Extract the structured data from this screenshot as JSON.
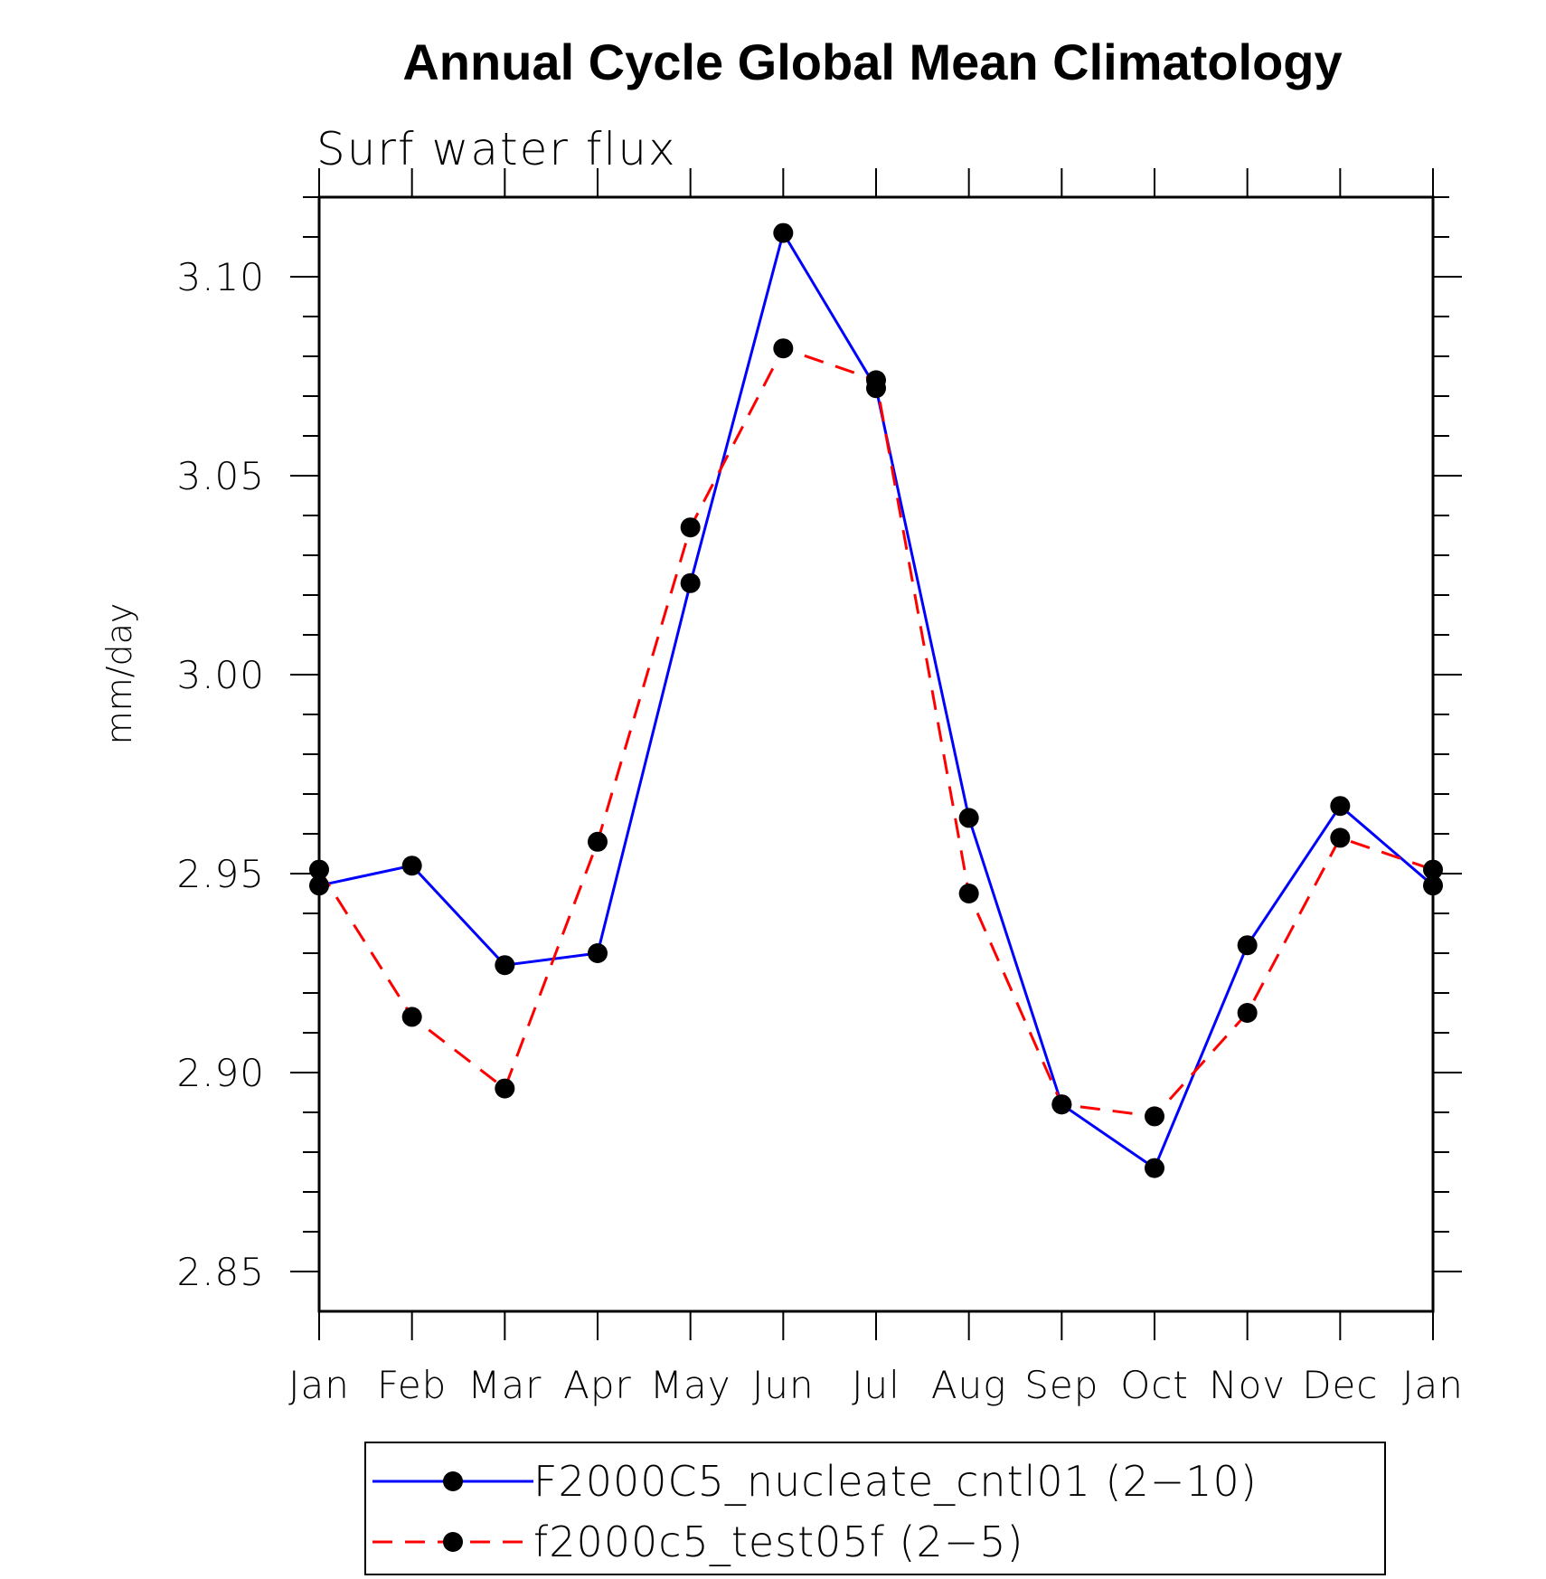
{
  "chart_data": {
    "type": "line",
    "title": "Annual Cycle Global Mean Climatology",
    "subtitle": "Surf water flux",
    "ylabel": "mm/day",
    "xlabel": "",
    "categories": [
      "Jan",
      "Feb",
      "Mar",
      "Apr",
      "May",
      "Jun",
      "Jul",
      "Aug",
      "Sep",
      "Oct",
      "Nov",
      "Dec",
      "Jan"
    ],
    "ylim": [
      2.84,
      3.12
    ],
    "yticks": [
      "2.85",
      "2.90",
      "2.95",
      "3.00",
      "3.05",
      "3.10"
    ],
    "series": [
      {
        "name": "F2000C5_nucleate_cntl01 (2−10)",
        "color": "#0000ff",
        "style": "solid",
        "marker": "filled-circle",
        "values": [
          2.947,
          2.952,
          2.927,
          2.93,
          3.023,
          3.111,
          3.072,
          2.964,
          2.892,
          2.876,
          2.932,
          2.967,
          2.947
        ]
      },
      {
        "name": "f2000c5_test05f (2−5)",
        "color": "#ff0000",
        "style": "dashed",
        "marker": "filled-circle",
        "values": [
          2.951,
          2.914,
          2.896,
          2.958,
          3.037,
          3.082,
          3.074,
          2.945,
          2.892,
          2.889,
          2.915,
          2.959,
          2.951
        ]
      }
    ],
    "legend_position": "bottom"
  }
}
